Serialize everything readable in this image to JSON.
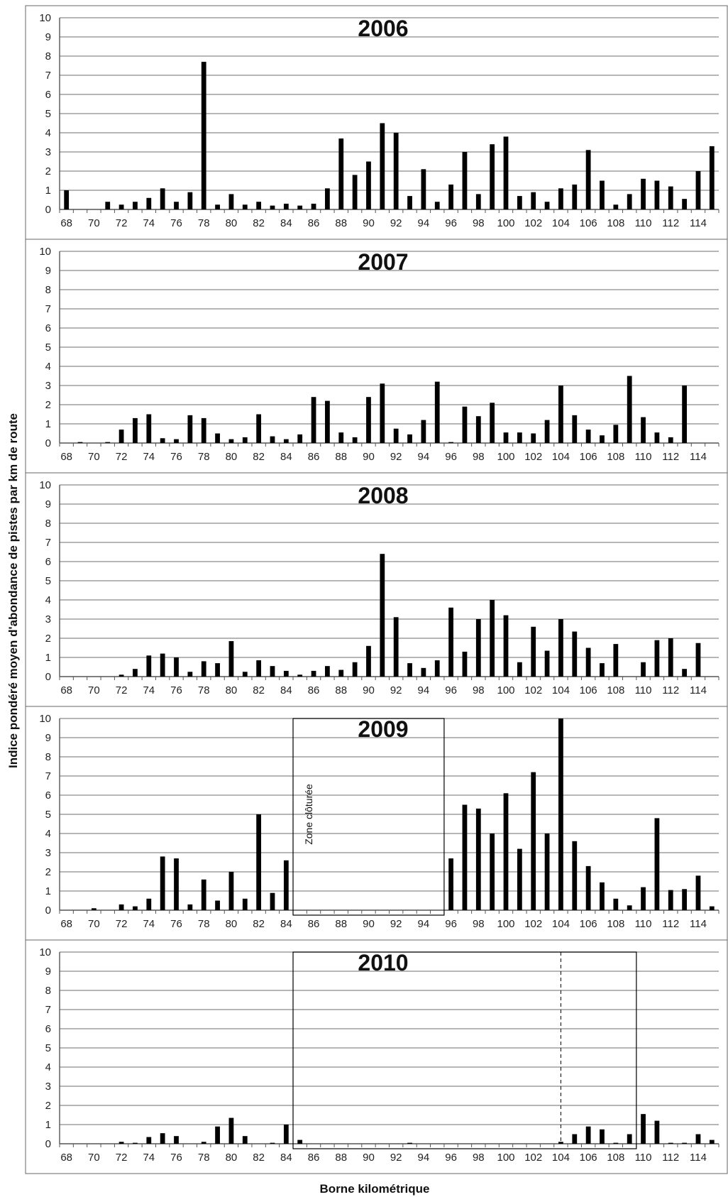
{
  "chart_data": {
    "type": "bar",
    "ylabel": "Indice pondéré moyen d'abondance de pistes par km de route",
    "xlabel": "Borne kilométrique",
    "ylim": [
      0,
      10
    ],
    "yticks": [
      0,
      1,
      2,
      3,
      4,
      5,
      6,
      7,
      8,
      9,
      10
    ],
    "x_min": 68,
    "x_max": 115,
    "x_tick_labels": [
      "68",
      "70",
      "72",
      "74",
      "76",
      "78",
      "80",
      "82",
      "84",
      "86",
      "88",
      "90",
      "92",
      "94",
      "96",
      "98",
      "100",
      "102",
      "104",
      "106",
      "108",
      "110",
      "112",
      "114"
    ],
    "grid": true,
    "panels": [
      {
        "title": "2006",
        "values": [
          1.0,
          0,
          0,
          0.4,
          0.25,
          0.4,
          0.6,
          1.1,
          0.4,
          0.9,
          7.7,
          0.25,
          0.8,
          0.25,
          0.4,
          0.2,
          0.3,
          0.2,
          0.3,
          1.1,
          3.7,
          1.8,
          2.5,
          4.5,
          4.0,
          0.7,
          2.1,
          0.4,
          1.3,
          3.0,
          0.8,
          3.4,
          3.8,
          0.7,
          0.9,
          0.4,
          1.1,
          1.3,
          3.1,
          1.5,
          0.25,
          0.8,
          1.6,
          1.5,
          1.2,
          0.55,
          2.0,
          3.3
        ]
      },
      {
        "title": "2007",
        "values": [
          0,
          0.05,
          0,
          0.05,
          0.7,
          1.3,
          1.5,
          0.25,
          0.2,
          1.45,
          1.3,
          0.5,
          0.2,
          0.3,
          1.5,
          0.35,
          0.2,
          0.45,
          2.4,
          2.2,
          0.55,
          0.3,
          2.4,
          3.1,
          0.75,
          0.45,
          1.2,
          3.2,
          0.05,
          1.9,
          1.4,
          2.1,
          0.55,
          0.55,
          0.5,
          1.2,
          3.0,
          1.45,
          0.7,
          0.4,
          0.95,
          3.5,
          1.35,
          0.55,
          0.3,
          3.0,
          0,
          0
        ]
      },
      {
        "title": "2008",
        "values": [
          0,
          0,
          0,
          0,
          0.1,
          0.4,
          1.1,
          1.2,
          1.0,
          0.25,
          0.8,
          0.7,
          1.85,
          0.25,
          0.85,
          0.55,
          0.3,
          0.1,
          0.3,
          0.55,
          0.35,
          0.75,
          1.6,
          6.4,
          3.1,
          0.7,
          0.45,
          0.85,
          3.6,
          1.3,
          3.0,
          4.0,
          3.2,
          0.75,
          2.6,
          1.35,
          3.0,
          2.35,
          1.5,
          0.7,
          1.7,
          0,
          0.75,
          1.9,
          2.0,
          0.4,
          1.75,
          0
        ]
      },
      {
        "title": "2009",
        "values": [
          0,
          0,
          0.1,
          0,
          0.3,
          0.2,
          0.6,
          2.8,
          2.7,
          0.3,
          1.6,
          0.5,
          2.0,
          0.6,
          5.0,
          0.9,
          2.6,
          0,
          0,
          0,
          0,
          0,
          0,
          0,
          0,
          0,
          0,
          0,
          2.7,
          5.5,
          5.3,
          4.0,
          6.1,
          3.2,
          7.2,
          4.0,
          10.0,
          3.6,
          2.3,
          1.45,
          0.6,
          0.25,
          1.2,
          4.8,
          1.05,
          1.1,
          1.8,
          0.2
        ],
        "zone": {
          "from": 84.5,
          "to": 95.5,
          "label": "Zone clôturée"
        }
      },
      {
        "title": "2010",
        "values": [
          0,
          0,
          0,
          0,
          0.1,
          0.05,
          0.35,
          0.55,
          0.4,
          0,
          0.1,
          0.9,
          1.35,
          0.4,
          0,
          0.05,
          1.0,
          0.2,
          0,
          0,
          0,
          0,
          0,
          0,
          0,
          0.05,
          0,
          0,
          0,
          0,
          0,
          0,
          0,
          0,
          0,
          0,
          0.1,
          0.5,
          0.9,
          0.75,
          0.05,
          0.5,
          1.55,
          1.2,
          0.05,
          0.05,
          0.5,
          0.2
        ],
        "zone": {
          "from": 84.5,
          "to": 109.5,
          "divider": 104
        }
      }
    ]
  }
}
